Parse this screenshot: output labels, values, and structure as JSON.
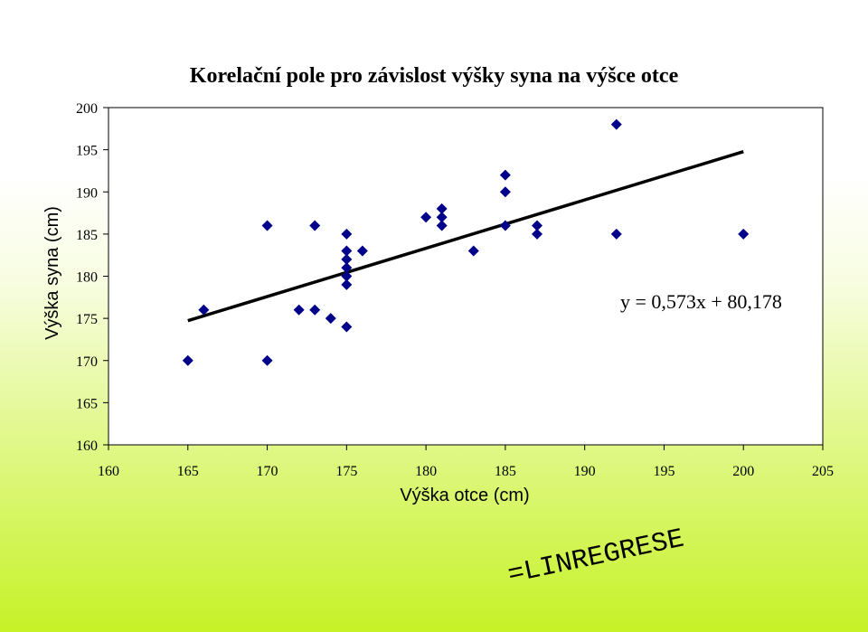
{
  "formula_text": "=LINREGRESE",
  "chart_data": {
    "type": "scatter",
    "title": "Korelační pole pro závislost výšky syna na výšce otce",
    "xlabel": "Výška otce (cm)",
    "ylabel": "Výška syna (cm)",
    "xlim": [
      160,
      205
    ],
    "ylim": [
      160,
      200
    ],
    "xticks": [
      160,
      165,
      170,
      175,
      180,
      185,
      190,
      195,
      200,
      205
    ],
    "yticks": [
      160,
      165,
      170,
      175,
      180,
      185,
      190,
      195,
      200
    ],
    "grid": false,
    "marker_color": "#00008b",
    "line_color": "#000000",
    "points": [
      [
        165,
        170
      ],
      [
        166,
        176
      ],
      [
        170,
        186
      ],
      [
        170,
        170
      ],
      [
        172,
        176
      ],
      [
        173,
        186
      ],
      [
        173,
        176
      ],
      [
        174,
        175
      ],
      [
        175,
        185
      ],
      [
        175,
        183
      ],
      [
        175,
        182
      ],
      [
        175,
        181
      ],
      [
        175,
        180
      ],
      [
        175,
        179
      ],
      [
        175,
        174
      ],
      [
        176,
        183
      ],
      [
        180,
        187
      ],
      [
        181,
        188
      ],
      [
        181,
        187
      ],
      [
        181,
        186
      ],
      [
        183,
        183
      ],
      [
        185,
        192
      ],
      [
        185,
        190
      ],
      [
        185,
        186
      ],
      [
        187,
        186
      ],
      [
        187,
        185
      ],
      [
        192,
        198
      ],
      [
        192,
        185
      ],
      [
        200,
        185
      ]
    ],
    "trendline": {
      "slope": 0.573,
      "intercept": 80.178,
      "x_range": [
        165,
        200
      ],
      "equation": "y = 0,573x + 80,178"
    }
  }
}
